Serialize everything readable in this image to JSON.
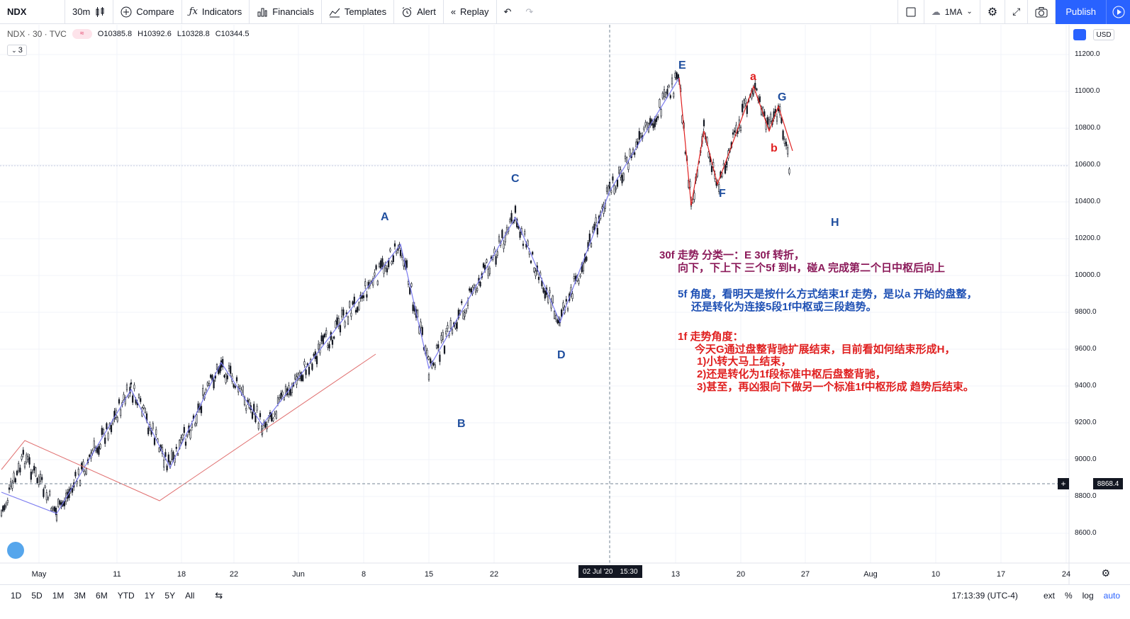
{
  "toolbar": {
    "symbol": "NDX",
    "interval": "30m",
    "compare": "Compare",
    "indicators": "Indicators",
    "financials": "Financials",
    "templates": "Templates",
    "alert": "Alert",
    "replay": "Replay",
    "layout_name": "1MA",
    "publish": "Publish"
  },
  "legend": {
    "symbol": "NDX · 30 · TVC",
    "badge": "≈",
    "open": "O10385.8",
    "high": "H10392.6",
    "low": "L10328.8",
    "close": "C10344.5",
    "indicator_count": "3"
  },
  "price_axis": {
    "currency": "USD",
    "ticks": [
      "11200.0",
      "11000.0",
      "10800.0",
      "10600.0",
      "10400.0",
      "10200.0",
      "10000.0",
      "9800.0",
      "9600.0",
      "9400.0",
      "9200.0",
      "9000.0",
      "8800.0",
      "8600.0"
    ],
    "crosshair_price": "8868.4"
  },
  "time_axis": {
    "ticks": [
      "May",
      "11",
      "18",
      "22",
      "Jun",
      "8",
      "15",
      "22",
      "13",
      "20",
      "27",
      "Aug",
      "10",
      "17",
      "24"
    ],
    "crosshair_date": "02 Jul '20",
    "crosshair_time": "15:30"
  },
  "waves": {
    "A": "A",
    "B": "B",
    "C": "C",
    "D": "D",
    "E": "E",
    "F": "F",
    "G": "G",
    "H": "H",
    "a": "a",
    "b": "b"
  },
  "annotations": {
    "line1": "30f 走势 分类一：E 30f 转折，",
    "line2": "向下，下上下 三个5f 到H，碰A 完成第二个日中枢后向上",
    "line3": "5f 角度，看明天是按什么方式结束1f 走势，是以a 开始的盘整，",
    "line4": "还是转化为连接5段1f中枢或三段趋势。",
    "line5": "1f 走势角度：",
    "line6": "今天G通过盘整背驰扩展结束，目前看如何结束形成H，",
    "line7": "1)小转大马上结束，",
    "line8": "2)还是转化为1f段标准中枢后盘整背驰，",
    "line9": "3)甚至，再凶狠向下做另一个标准1f中枢形成 趋势后结束。"
  },
  "colors": {
    "accent": "#2962ff",
    "wave_blue": "#1f4e9e",
    "annot_purple": "#8b1a5a",
    "annot_blue": "#1e50b4",
    "annot_red": "#e02020",
    "candle": "#131722",
    "line_blue": "#7b7bf0",
    "line_red": "#e07070"
  },
  "bottombar": {
    "ranges": [
      "1D",
      "5D",
      "1M",
      "3M",
      "6M",
      "YTD",
      "1Y",
      "5Y",
      "All"
    ],
    "clock": "17:13:39 (UTC-4)",
    "ext": "ext",
    "percent": "%",
    "log": "log",
    "auto": "auto"
  },
  "chart_data": {
    "type": "line",
    "x": [
      "May 1",
      "May 6",
      "May 14",
      "May 21",
      "May 26",
      "Jun 10",
      "Jun 15",
      "Jun 24",
      "Jul 1",
      "Jul 13",
      "Jul 14",
      "Jul 17",
      "Jul 21",
      "Jul 23",
      "Jul 24"
    ],
    "series": [
      {
        "name": "",
        "values": [
          8800,
          9000,
          8900,
          9350,
          9200,
          10150,
          9500,
          10120,
          9750,
          11050,
          10380,
          10500,
          11000,
          10800,
          10550
        ]
      }
    ],
    "ylim": [
      8500,
      11280
    ]
  }
}
